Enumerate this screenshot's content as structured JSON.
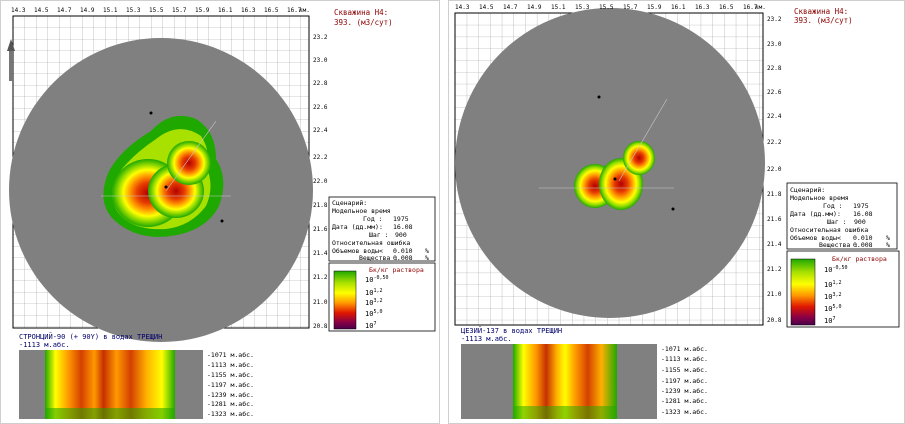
{
  "left": {
    "well_title": "Скважина Н4:",
    "well_rate": "393. (м3/сут)",
    "x_ticks": [
      "14.3",
      "14.5",
      "14.7",
      "14.9",
      "15.1",
      "15.3",
      "15.5",
      "15.7",
      "15.9",
      "16.1",
      "16.3",
      "16.5",
      "16.7"
    ],
    "x_unit": "км.",
    "y_ticks": [
      "23.2",
      "23.0",
      "22.8",
      "22.6",
      "22.4",
      "22.2",
      "22.0",
      "21.8",
      "21.6",
      "21.4",
      "21.2",
      "21.0",
      "20.8"
    ],
    "scenario": {
      "heading": "Сценарий:",
      "model_time": "Модельное время",
      "year_label": "Год :",
      "year": "1975",
      "date_label": "Дата (дд.мм):",
      "date": "16.08",
      "step_label": "Шаг :",
      "step": "900",
      "rel_error": "Относительная ошибка",
      "water_label": "Объемов воды<",
      "water": "0.010",
      "water_unit": "%",
      "subst_label": "Вещества :",
      "subst": "0.008",
      "subst_unit": "%"
    },
    "legend": {
      "title": "Бк/кг раствора",
      "items": [
        {
          "base": "10",
          "exp": "-0,50"
        },
        {
          "base": "10",
          "exp": "1,2"
        },
        {
          "base": "10",
          "exp": "3,2"
        },
        {
          "base": "10",
          "exp": "5,0"
        },
        {
          "base": "10",
          "exp": "7"
        }
      ]
    },
    "caption": "СТРОНЦИЙ-90 (+ 90Y) в водах ТРЕЩИН",
    "depth_caption": "-1113 м.абс.",
    "depths": [
      "-1071 м.абс.",
      "-1113 м.абс.",
      "-1155 м.абс.",
      "-1197 м.абс.",
      "-1239 м.абс.",
      "-1281 м.абс.",
      "-1323 м.абс."
    ]
  },
  "right": {
    "well_title": "Скважина Н4:",
    "well_rate": "393. (м3/сут)",
    "x_ticks": [
      "14.3",
      "14.5",
      "14.7",
      "14.9",
      "15.1",
      "15.3",
      "15.5",
      "15.7",
      "15.9",
      "16.1",
      "16.3",
      "16.5",
      "16.7"
    ],
    "x_unit": "км.",
    "y_ticks": [
      "23.2",
      "23.0",
      "22.8",
      "22.6",
      "22.4",
      "22.2",
      "22.0",
      "21.8",
      "21.6",
      "21.4",
      "21.2",
      "21.0",
      "20.8"
    ],
    "scenario": {
      "heading": "Сценарий:",
      "model_time": "Модельное время",
      "year_label": "Год :",
      "year": "1975",
      "date_label": "Дата (дд.мм):",
      "date": "16.08",
      "step_label": "Шаг :",
      "step": "900",
      "rel_error": "Относительная ошибка",
      "water_label": "Объемов воды<",
      "water": "0.010",
      "water_unit": "%",
      "subst_label": "Вещества :",
      "subst": "0.008",
      "subst_unit": "%"
    },
    "legend": {
      "title": "Бк/кг раствора",
      "items": [
        {
          "base": "10",
          "exp": "-0,50"
        },
        {
          "base": "10",
          "exp": "1,2"
        },
        {
          "base": "10",
          "exp": "3,2"
        },
        {
          "base": "10",
          "exp": "5,0"
        },
        {
          "base": "10",
          "exp": "7"
        }
      ]
    },
    "caption": "ЦЕЗИЙ-137 в водах ТРЕЩИН",
    "depth_caption": "-1113 м.абс.",
    "depths": [
      "-1071 м.абс.",
      "-1113 м.абс.",
      "-1155 м.абс.",
      "-1197 м.абс.",
      "-1239 м.абс.",
      "-1281 м.абс.",
      "-1323 м.абс."
    ]
  }
}
